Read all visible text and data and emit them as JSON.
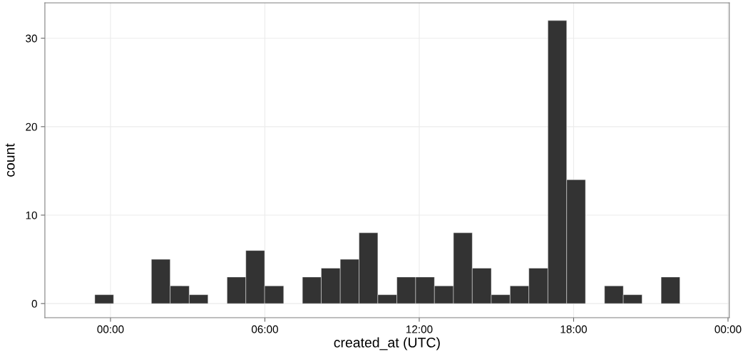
{
  "chart_data": {
    "type": "histogram",
    "xlabel": "created_at (UTC)",
    "ylabel": "count",
    "color": "#333333",
    "bins": [
      -0.61,
      0.12,
      0.86,
      1.59,
      2.32,
      3.06,
      3.79,
      4.53,
      5.26,
      5.99,
      6.73,
      7.46,
      8.19,
      8.93,
      9.66,
      10.39,
      11.13,
      11.86,
      12.59,
      13.33,
      14.06,
      14.8,
      15.53,
      16.26,
      17.0,
      17.73,
      18.46,
      19.2,
      19.93,
      20.66,
      21.4,
      22.13
    ],
    "values": [
      1,
      0,
      0,
      5,
      2,
      1,
      0,
      3,
      6,
      2,
      0,
      3,
      4,
      5,
      8,
      1,
      3,
      3,
      2,
      8,
      4,
      1,
      2,
      4,
      32,
      14,
      0,
      2,
      1,
      0,
      3
    ],
    "xlim": [
      -2.55,
      24.05
    ],
    "xticks": [
      {
        "value": 0,
        "label": "00:00"
      },
      {
        "value": 6,
        "label": "06:00"
      },
      {
        "value": 12,
        "label": "12:00"
      },
      {
        "value": 18,
        "label": "18:00"
      },
      {
        "value": 24,
        "label": "00:00"
      }
    ],
    "ylim": [
      -1.6,
      34
    ],
    "yticks": [
      0,
      10,
      20,
      30
    ],
    "grid": true
  }
}
